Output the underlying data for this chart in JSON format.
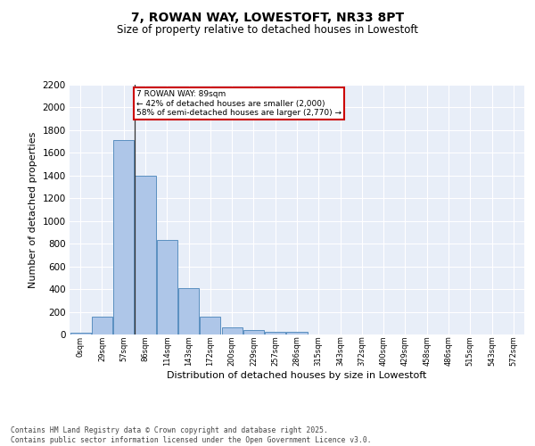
{
  "title1": "7, ROWAN WAY, LOWESTOFT, NR33 8PT",
  "title2": "Size of property relative to detached houses in Lowestoft",
  "xlabel": "Distribution of detached houses by size in Lowestoft",
  "ylabel": "Number of detached properties",
  "bar_categories": [
    "0sqm",
    "29sqm",
    "57sqm",
    "86sqm",
    "114sqm",
    "143sqm",
    "172sqm",
    "200sqm",
    "229sqm",
    "257sqm",
    "286sqm",
    "315sqm",
    "343sqm",
    "372sqm",
    "400sqm",
    "429sqm",
    "458sqm",
    "486sqm",
    "515sqm",
    "543sqm",
    "572sqm"
  ],
  "bar_values": [
    15,
    155,
    1710,
    1400,
    835,
    405,
    160,
    60,
    37,
    25,
    22,
    0,
    0,
    0,
    0,
    0,
    0,
    0,
    0,
    0,
    0
  ],
  "bar_color": "#aec6e8",
  "bar_edge_color": "#5a8fc0",
  "background_color": "#e8eef8",
  "grid_color": "#ffffff",
  "property_line_x": 2.5,
  "annotation_text": "7 ROWAN WAY: 89sqm\n← 42% of detached houses are smaller (2,000)\n58% of semi-detached houses are larger (2,770) →",
  "annotation_box_color": "#ffffff",
  "annotation_box_edgecolor": "#cc0000",
  "ylim": [
    0,
    2200
  ],
  "yticks": [
    0,
    200,
    400,
    600,
    800,
    1000,
    1200,
    1400,
    1600,
    1800,
    2000,
    2200
  ],
  "footer_line1": "Contains HM Land Registry data © Crown copyright and database right 2025.",
  "footer_line2": "Contains public sector information licensed under the Open Government Licence v3.0."
}
